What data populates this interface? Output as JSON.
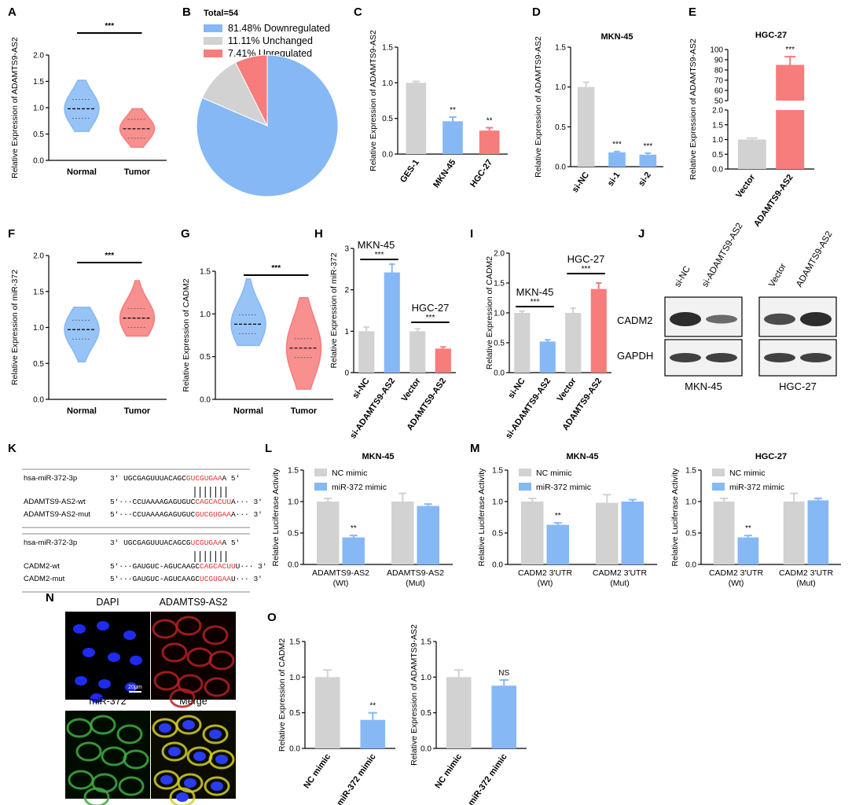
{
  "panels": [
    "A",
    "B",
    "C",
    "D",
    "E",
    "F",
    "G",
    "H",
    "I",
    "J",
    "K",
    "L",
    "M",
    "N",
    "O"
  ],
  "colors": {
    "blue": "#86b8f5",
    "red": "#f77c7c",
    "gray": "#d2d2d2",
    "blot": "#222222"
  },
  "stars": {
    "three": "***",
    "two": "**",
    "ns": "NS"
  },
  "chart_data": [
    {
      "id": "A",
      "type": "violin",
      "ylabel": "Relative Expression of ADAMTS9-AS2",
      "categories": [
        "Normal",
        "Tumor"
      ],
      "ylim": [
        0,
        2.0
      ],
      "yticks": [
        "0.0",
        "0.5",
        "1.0",
        "1.5",
        "2.0"
      ],
      "medians": [
        0.98,
        0.6
      ],
      "ranges": [
        [
          0.55,
          1.52
        ],
        [
          0.25,
          0.98
        ]
      ],
      "significance": "***"
    },
    {
      "id": "B",
      "type": "pie",
      "title": "Total=54",
      "labels": [
        "81.48%  Downregulated",
        "11.11%  Unchanged",
        "7.41%  Upregulated"
      ],
      "values": [
        81.48,
        11.11,
        7.41
      ]
    },
    {
      "id": "C",
      "type": "bar",
      "ylabel": "Relative Expression of ADAMTS9-AS2",
      "categories": [
        "GES-1",
        "MKN-45",
        "HGC-27"
      ],
      "values": [
        1.0,
        0.46,
        0.33
      ],
      "errors": [
        0.02,
        0.06,
        0.04
      ],
      "ylim": [
        0,
        1.5
      ],
      "yticks": [
        "0.0",
        "0.5",
        "1.0",
        "1.5"
      ],
      "significance": [
        "",
        "**",
        "**"
      ]
    },
    {
      "id": "D",
      "type": "bar",
      "title": "MKN-45",
      "ylabel": "Relative Expression of ADAMTS9-AS2",
      "categories": [
        "si-NC",
        "si-1",
        "si-2"
      ],
      "values": [
        1.0,
        0.18,
        0.15
      ],
      "errors": [
        0.06,
        0.01,
        0.02
      ],
      "ylim": [
        0,
        1.5
      ],
      "yticks": [
        "0.0",
        "0.5",
        "1.0",
        "1.5"
      ],
      "significance": [
        "",
        "***",
        "***"
      ]
    },
    {
      "id": "E",
      "type": "bar",
      "title": "HGC-27",
      "ylabel": "Relative Expression of ADAMTS9-AS2",
      "categories": [
        "Vector",
        "ADAMTS9-AS2"
      ],
      "values": [
        1.0,
        85
      ],
      "errors": [
        0.05,
        8
      ],
      "yticks_low": [
        "0.0",
        "0.5",
        "1.0",
        "1.5",
        "2.0"
      ],
      "yticks_high": [
        "50",
        "60",
        "70",
        "80",
        "90",
        "100"
      ],
      "significance": [
        "",
        "***"
      ]
    },
    {
      "id": "F",
      "type": "violin",
      "ylabel": "Relative Expression of miR-372",
      "categories": [
        "Normal",
        "Tumor"
      ],
      "ylim": [
        0,
        2.0
      ],
      "yticks": [
        "0.0",
        "0.5",
        "1.0",
        "1.5",
        "2.0"
      ],
      "medians": [
        0.97,
        1.13
      ],
      "ranges": [
        [
          0.52,
          1.28
        ],
        [
          0.88,
          1.65
        ]
      ],
      "significance": "***"
    },
    {
      "id": "G",
      "type": "violin",
      "ylabel": "Relative Expression of CADM2",
      "categories": [
        "Normal",
        "Tumor"
      ],
      "ylim": [
        0,
        1.5
      ],
      "yticks": [
        "0.0",
        "0.5",
        "1.0",
        "1.5"
      ],
      "medians": [
        0.88,
        0.6
      ],
      "ranges": [
        [
          0.63,
          1.41
        ],
        [
          0.12,
          1.19
        ]
      ],
      "significance": "***"
    },
    {
      "id": "H",
      "type": "bar",
      "ylabel": "Relative Expression of miR-372",
      "categories": [
        "si-NC",
        "si-ADAMTS9-AS2",
        "Vector",
        "ADAMTS9-AS2"
      ],
      "values": [
        1.0,
        2.42,
        1.0,
        0.58
      ],
      "errors": [
        0.1,
        0.2,
        0.06,
        0.04
      ],
      "ylim": [
        0,
        3
      ],
      "yticks": [
        "0",
        "1",
        "2",
        "3"
      ],
      "groups": [
        "MKN-45",
        "HGC-27"
      ],
      "significance": [
        "***",
        "***"
      ]
    },
    {
      "id": "I",
      "type": "bar",
      "ylabel": "Relative Expression of CADM2",
      "categories": [
        "si-NC",
        "si-ADAMTS9-AS2",
        "Vector",
        "ADAMTS9-AS2"
      ],
      "values": [
        1.0,
        0.52,
        1.0,
        1.4
      ],
      "errors": [
        0.03,
        0.03,
        0.08,
        0.1
      ],
      "ylim": [
        0,
        2.0
      ],
      "yticks": [
        "0.0",
        "0.5",
        "1.0",
        "1.5",
        "2.0"
      ],
      "groups": [
        "MKN-45",
        "HGC-27"
      ],
      "significance": [
        "***",
        "***"
      ]
    },
    {
      "id": "L",
      "type": "bar",
      "title": "MKN-45",
      "ylabel": "Relative Luciferase Activity",
      "series": [
        {
          "name": "NC mimic",
          "values": [
            1.0,
            1.0
          ]
        },
        {
          "name": "miR-372 mimic",
          "values": [
            0.43,
            0.93
          ]
        }
      ],
      "categories": [
        "ADAMTS9-AS2 (Wt)",
        "ADAMTS9-AS2 (Mut)"
      ],
      "ylim": [
        0,
        1.5
      ],
      "yticks": [
        "0.0",
        "0.5",
        "1.0",
        "1.5"
      ],
      "significance": "**"
    },
    {
      "id": "M1",
      "type": "bar",
      "title": "MKN-45",
      "ylabel": "Relative Luciferase Activity",
      "series": [
        {
          "name": "NC mimic",
          "values": [
            1.0,
            0.98
          ]
        },
        {
          "name": "miR-372 mimic",
          "values": [
            0.63,
            1.0
          ]
        }
      ],
      "categories": [
        "CADM2 3'UTR (Wt)",
        "CADM2 3'UTR (Mut)"
      ],
      "ylim": [
        0,
        1.5
      ],
      "yticks": [
        "0.0",
        "0.5",
        "1.0",
        "1.5"
      ],
      "significance": "**"
    },
    {
      "id": "M2",
      "type": "bar",
      "title": "HGC-27",
      "ylabel": "Relative Luciferase Activity",
      "series": [
        {
          "name": "NC mimic",
          "values": [
            1.0,
            1.0
          ]
        },
        {
          "name": "miR-372 mimic",
          "values": [
            0.43,
            1.02
          ]
        }
      ],
      "categories": [
        "CADM2 3'UTR (Wt)",
        "CADM2 3'UTR (Mut)"
      ],
      "ylim": [
        0,
        1.5
      ],
      "yticks": [
        "0.0",
        "0.5",
        "1.0",
        "1.5"
      ],
      "significance": "**"
    },
    {
      "id": "O1",
      "type": "bar",
      "ylabel": "Relative Expression of CADM2",
      "categories": [
        "NC mimic",
        "miR-372 mimic"
      ],
      "values": [
        1.0,
        0.4
      ],
      "errors": [
        0.1,
        0.1
      ],
      "ylim": [
        0,
        1.5
      ],
      "yticks": [
        "0.0",
        "0.5",
        "1.0",
        "1.5"
      ],
      "significance": [
        "",
        "**"
      ]
    },
    {
      "id": "O2",
      "type": "bar",
      "ylabel": "Relative Expression of ADAMTS9-AS2",
      "categories": [
        "NC mimic",
        "miR-372 mimic"
      ],
      "values": [
        1.0,
        0.88
      ],
      "errors": [
        0.1,
        0.08
      ],
      "ylim": [
        0,
        1.5
      ],
      "yticks": [
        "0.0",
        "0.5",
        "1.0",
        "1.5"
      ],
      "significance": [
        "",
        "NS"
      ]
    }
  ],
  "blot": {
    "rows": [
      "CADM2",
      "GAPDH"
    ],
    "groups": [
      "MKN-45",
      "HGC-27"
    ],
    "lanes": [
      "si-NC",
      "si-ADAMTS9-AS2",
      "Vector",
      "ADAMTS9-AS2"
    ]
  },
  "sequences": {
    "block1": [
      {
        "label": "hsa-miR-372-3p",
        "pre": "3'  UGCGAGUUUACAGC",
        "hl": "GUCGUGAA",
        "post": "A 5'"
      },
      {
        "label": "ADAMTS9-AS2-wt",
        "pre": "5'···CCUAAAAGAGUGUC",
        "hl": "CAGCACUU",
        "post": "A··· 3'"
      },
      {
        "label": "ADAMTS9-AS2-mut",
        "pre": "5'···CCUAAAAGAGUGUC",
        "hl": "GUCGUGAA",
        "post": "A··· 3'"
      }
    ],
    "block2": [
      {
        "label": "hsa-miR-372-3p",
        "pre": "3'  UGCGAGUUUACAGCG",
        "hl": "UCGUGAA",
        "post": "A 5'"
      },
      {
        "label": "CADM2-wt",
        "pre": "5'···GAUGUC-AGUCAAGC",
        "hl": "CAGCACUU",
        "post": "U··· 3'"
      },
      {
        "label": "CADM2-mut",
        "pre": "5'···GAUGUC-AGUCAAGC",
        "hl": "UCGUGAA",
        "post": "U··· 3'"
      }
    ]
  },
  "microscopy": {
    "labels": [
      "DAPI",
      "ADAMTS9-AS2",
      "miR-372",
      "Merge"
    ],
    "scalebar": "20μm"
  }
}
